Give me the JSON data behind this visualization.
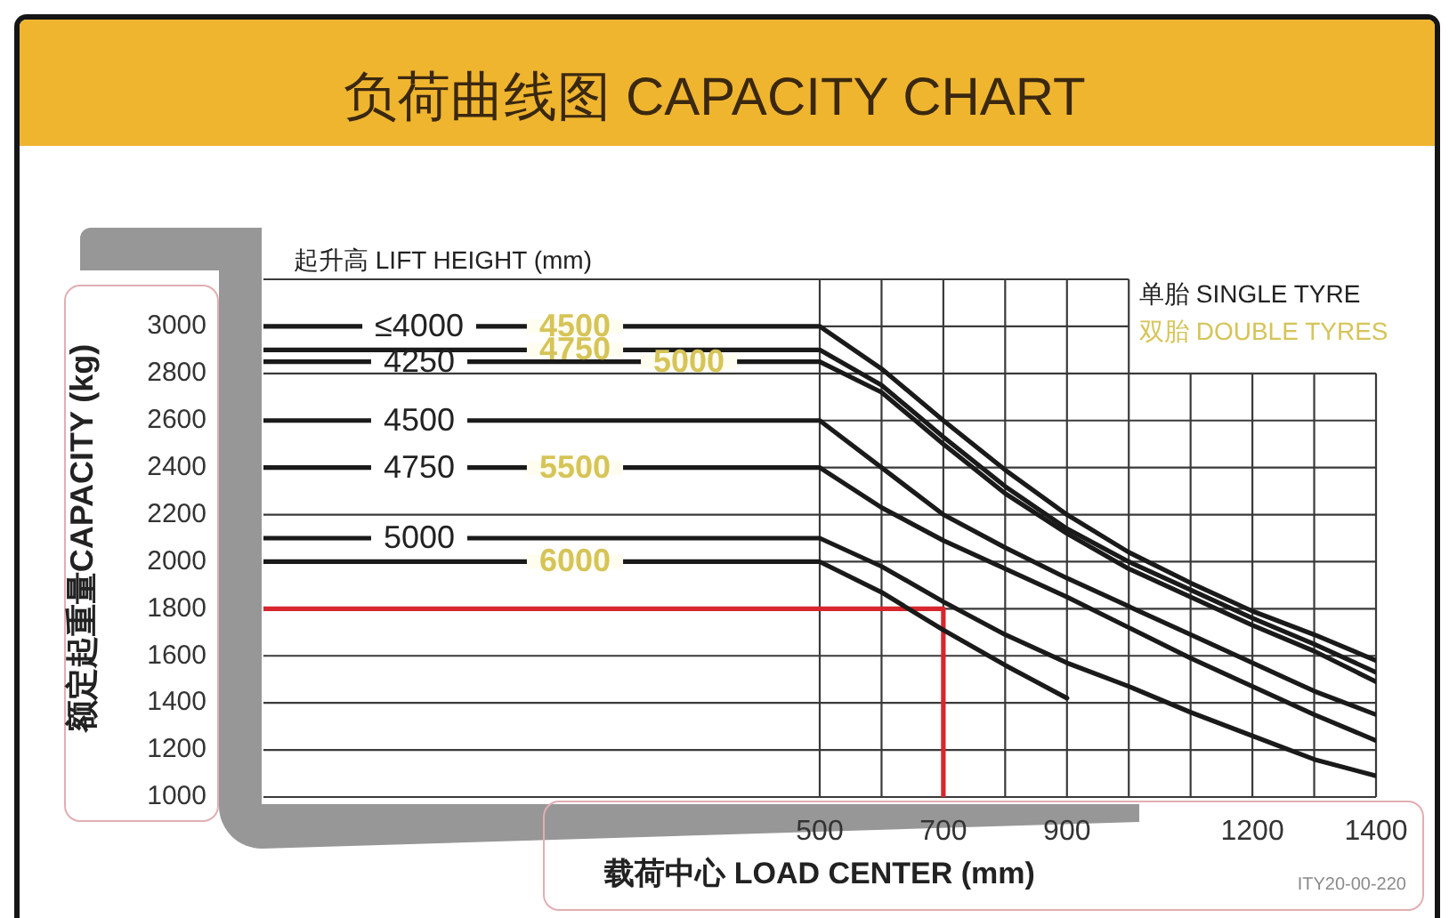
{
  "chart_data": {
    "type": "line",
    "title": "负荷曲线图 CAPACITY CHART",
    "xlabel": "载荷中心 LOAD CENTER (mm)",
    "ylabel": "额定起重量CAPACITY (kg)",
    "xlim": [
      -400,
      1400
    ],
    "xticks": [
      500,
      {
        "value": 600,
        "label": null
      },
      700,
      {
        "value": 800,
        "label": null
      },
      900,
      {
        "value": 1000,
        "label": null
      },
      {
        "value": 1100,
        "label": null
      },
      1200,
      {
        "value": 1300,
        "label": null
      },
      1400
    ],
    "ylim": [
      1000,
      3200
    ],
    "yticks": [
      1000,
      1200,
      1400,
      1600,
      1800,
      2000,
      2200,
      2400,
      2600,
      2800,
      3000
    ],
    "grid": true,
    "series": [
      {
        "name": "≤4000",
        "color": "#1a1a1a",
        "x": [
          -400,
          500,
          600,
          700,
          800,
          900,
          1000,
          1100,
          1200,
          1300,
          1400
        ],
        "values": [
          3000,
          3000,
          2820,
          2600,
          2390,
          2200,
          2040,
          1910,
          1790,
          1690,
          1580
        ]
      },
      {
        "color": "#1a1a1a",
        "x": [
          -400,
          500,
          600,
          700,
          800,
          900,
          1000,
          1100,
          1200,
          1300,
          1400
        ],
        "values": [
          2900,
          2900,
          2750,
          2530,
          2320,
          2140,
          2000,
          1880,
          1760,
          1650,
          1530
        ]
      },
      {
        "name": "4250",
        "color": "#1a1a1a",
        "x": [
          -400,
          500,
          600,
          700,
          800,
          900,
          1000,
          1100,
          1200,
          1300,
          1400
        ],
        "values": [
          2850,
          2850,
          2720,
          2500,
          2290,
          2120,
          1970,
          1850,
          1730,
          1620,
          1490
        ]
      },
      {
        "name": "4500",
        "color": "#1a1a1a",
        "x": [
          -400,
          500,
          600,
          700,
          800,
          900,
          1000,
          1100,
          1200,
          1300,
          1400
        ],
        "values": [
          2600,
          2600,
          2400,
          2200,
          2060,
          1930,
          1810,
          1690,
          1570,
          1450,
          1350
        ]
      },
      {
        "name": "4750",
        "color": "#1a1a1a",
        "x": [
          -400,
          500,
          600,
          700,
          800,
          900,
          1000,
          1100,
          1200,
          1300,
          1400
        ],
        "values": [
          2400,
          2400,
          2230,
          2090,
          1970,
          1850,
          1720,
          1590,
          1470,
          1350,
          1240
        ]
      },
      {
        "name": "5000",
        "color": "#1a1a1a",
        "x": [
          -400,
          500,
          600,
          700,
          800,
          900,
          1000,
          1100,
          1200,
          1300,
          1400
        ],
        "values": [
          2100,
          2100,
          1980,
          1830,
          1690,
          1570,
          1470,
          1360,
          1260,
          1160,
          1090
        ]
      },
      {
        "color": "#1a1a1a",
        "x": [
          -400,
          500,
          600,
          700,
          800,
          900
        ],
        "values": [
          2000,
          2000,
          1870,
          1710,
          1560,
          1420
        ]
      },
      {
        "color": "#d8262e",
        "x": [
          -400,
          700,
          700
        ],
        "values": [
          1800,
          1800,
          1000
        ]
      }
    ],
    "annotations": [
      "起升高 LIFT HEIGHT (mm)",
      "单胎 SINGLE TYRE",
      "双胎 DOUBLE TYRES",
      "ITY20-00-220",
      {
        "text": "4500",
        "y": 3000
      },
      {
        "text": "4750",
        "y": 2900
      },
      {
        "text": "5000",
        "y": 2850
      },
      {
        "text": "5500",
        "y": 2400
      },
      {
        "text": "6000",
        "y": 2000
      }
    ]
  }
}
